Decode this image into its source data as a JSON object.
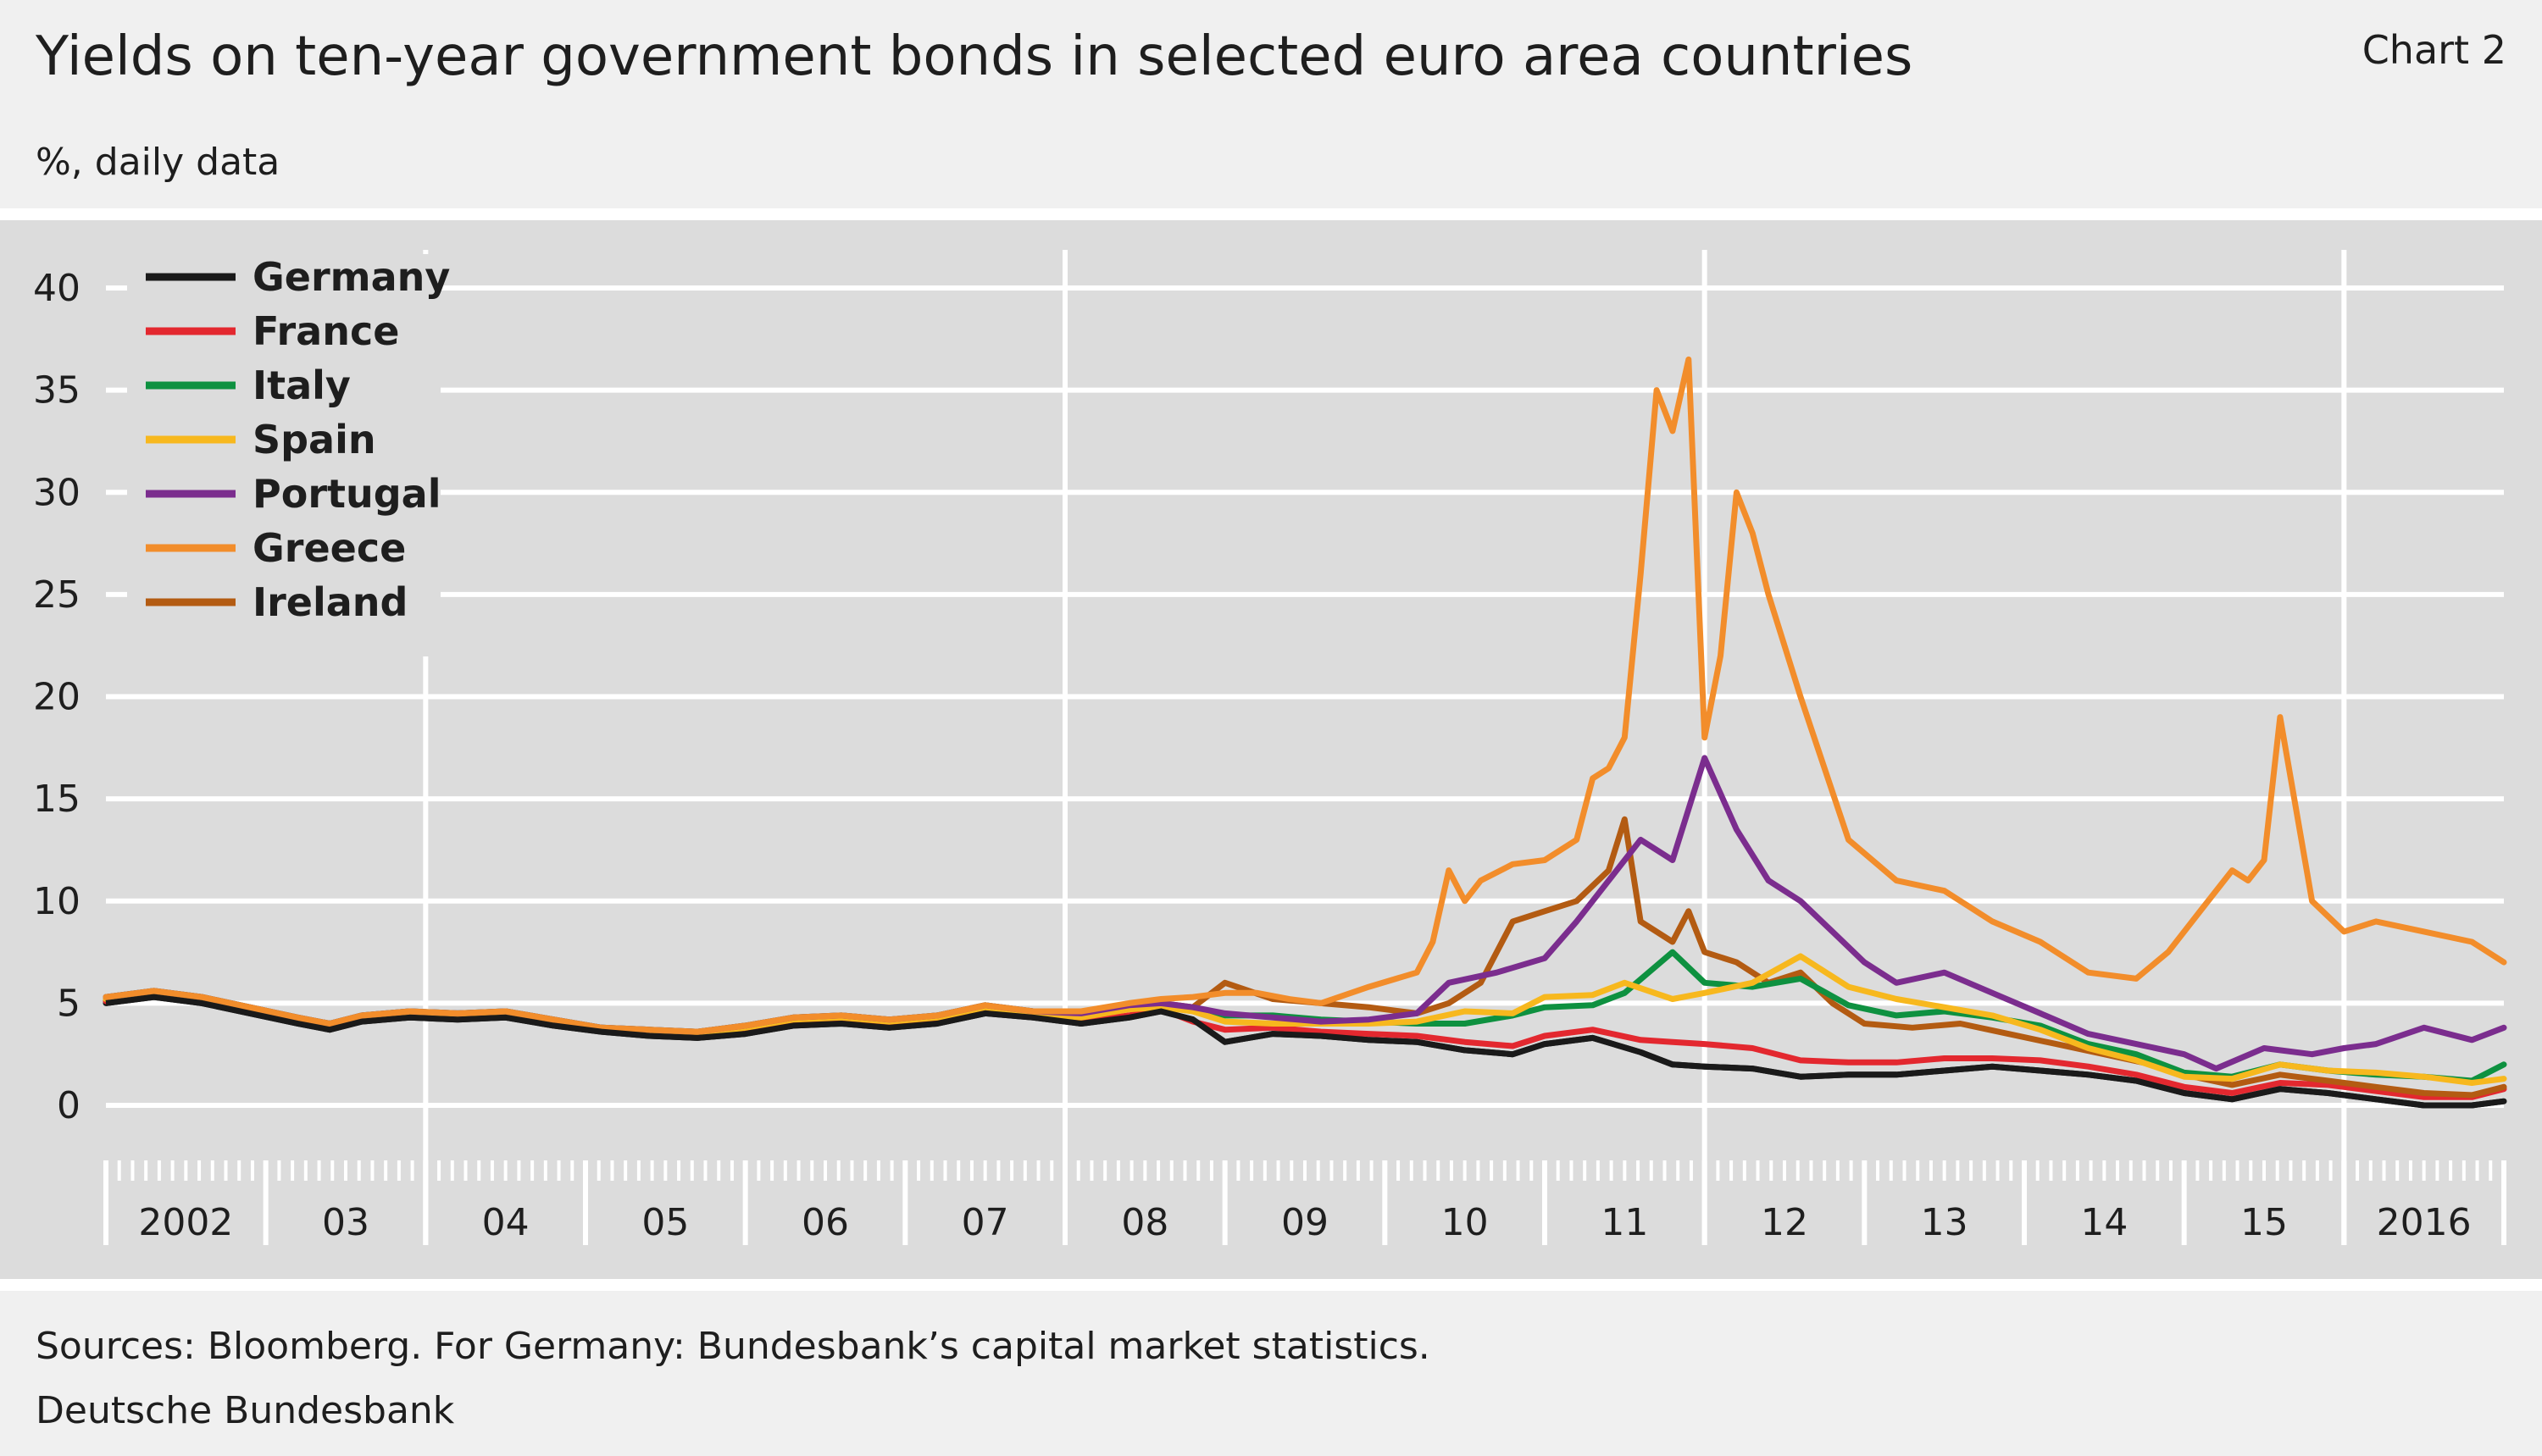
{
  "header": {
    "title": "Yields on ten-year government bonds in selected euro area countries",
    "chart_number": "Chart 2",
    "subtitle": "%, daily data"
  },
  "footer": {
    "sources": "Sources: Bloomberg. For Germany: Bundesbank’s capital market statistics.",
    "publisher": "Deutsche Bundesbank"
  },
  "chart_data": {
    "type": "line",
    "title": "Yields on ten-year government bonds in selected euro area countries",
    "ylabel": "%, daily data",
    "xlabel": "",
    "ylim": [
      -5,
      41
    ],
    "xlim": [
      2002.0,
      2017.0
    ],
    "yticks": [
      0,
      5,
      10,
      15,
      20,
      25,
      30,
      35,
      40
    ],
    "x_tick_labels": [
      {
        "label": "2002",
        "year": 2002
      },
      {
        "label": "03",
        "year": 2003
      },
      {
        "label": "04",
        "year": 2004
      },
      {
        "label": "05",
        "year": 2005
      },
      {
        "label": "06",
        "year": 2006
      },
      {
        "label": "07",
        "year": 2007
      },
      {
        "label": "08",
        "year": 2008
      },
      {
        "label": "09",
        "year": 2009
      },
      {
        "label": "10",
        "year": 2010
      },
      {
        "label": "11",
        "year": 2011
      },
      {
        "label": "12",
        "year": 2012
      },
      {
        "label": "13",
        "year": 2013
      },
      {
        "label": "14",
        "year": 2014
      },
      {
        "label": "15",
        "year": 2015
      },
      {
        "label": "2016",
        "year": 2016
      }
    ],
    "major_vertical_gridlines": [
      2004,
      2008,
      2012,
      2016
    ],
    "grid": true,
    "legend_position": "top-left",
    "series": [
      {
        "name": "Germany",
        "color": "#1a1a1a",
        "x": [
          2002.0,
          2002.3,
          2002.6,
          2002.9,
          2003.2,
          2003.4,
          2003.6,
          2003.9,
          2004.2,
          2004.5,
          2004.8,
          2005.1,
          2005.4,
          2005.7,
          2006.0,
          2006.3,
          2006.6,
          2006.9,
          2007.2,
          2007.5,
          2007.8,
          2008.1,
          2008.4,
          2008.6,
          2008.8,
          2009.0,
          2009.3,
          2009.6,
          2009.9,
          2010.2,
          2010.5,
          2010.8,
          2011.0,
          2011.3,
          2011.6,
          2011.8,
          2012.0,
          2012.3,
          2012.6,
          2012.9,
          2013.2,
          2013.5,
          2013.8,
          2014.1,
          2014.4,
          2014.7,
          2015.0,
          2015.3,
          2015.6,
          2015.9,
          2016.2,
          2016.5,
          2016.8,
          2017.0
        ],
        "y": [
          5.0,
          5.3,
          5.0,
          4.5,
          4.0,
          3.7,
          4.1,
          4.3,
          4.2,
          4.3,
          3.9,
          3.6,
          3.4,
          3.3,
          3.5,
          3.9,
          4.0,
          3.8,
          4.0,
          4.5,
          4.3,
          4.0,
          4.3,
          4.6,
          4.2,
          3.1,
          3.5,
          3.4,
          3.2,
          3.1,
          2.7,
          2.5,
          3.0,
          3.3,
          2.6,
          2.0,
          1.9,
          1.8,
          1.4,
          1.5,
          1.5,
          1.7,
          1.9,
          1.7,
          1.5,
          1.2,
          0.6,
          0.3,
          0.8,
          0.6,
          0.3,
          0.0,
          0.0,
          0.2
        ]
      },
      {
        "name": "France",
        "color": "#e3282f",
        "x": [
          2002.0,
          2002.3,
          2002.6,
          2002.9,
          2003.2,
          2003.4,
          2003.6,
          2003.9,
          2004.2,
          2004.5,
          2004.8,
          2005.1,
          2005.4,
          2005.7,
          2006.0,
          2006.3,
          2006.6,
          2006.9,
          2007.2,
          2007.5,
          2007.8,
          2008.1,
          2008.4,
          2008.6,
          2008.8,
          2009.0,
          2009.3,
          2009.6,
          2009.9,
          2010.2,
          2010.5,
          2010.8,
          2011.0,
          2011.3,
          2011.6,
          2011.8,
          2012.0,
          2012.3,
          2012.6,
          2012.9,
          2013.2,
          2013.5,
          2013.8,
          2014.1,
          2014.4,
          2014.7,
          2015.0,
          2015.3,
          2015.6,
          2015.9,
          2016.2,
          2016.5,
          2016.8,
          2017.0
        ],
        "y": [
          5.1,
          5.4,
          5.1,
          4.6,
          4.1,
          3.8,
          4.2,
          4.4,
          4.3,
          4.4,
          4.0,
          3.7,
          3.5,
          3.4,
          3.6,
          4.0,
          4.1,
          3.9,
          4.1,
          4.6,
          4.4,
          4.1,
          4.4,
          4.7,
          4.1,
          3.7,
          3.8,
          3.6,
          3.5,
          3.4,
          3.1,
          2.9,
          3.4,
          3.7,
          3.2,
          3.1,
          3.0,
          2.8,
          2.2,
          2.1,
          2.1,
          2.3,
          2.3,
          2.2,
          1.9,
          1.5,
          0.9,
          0.6,
          1.1,
          1.0,
          0.7,
          0.4,
          0.4,
          0.8
        ]
      },
      {
        "name": "Italy",
        "color": "#0e9140",
        "x": [
          2002.0,
          2002.3,
          2002.6,
          2002.9,
          2003.2,
          2003.4,
          2003.6,
          2003.9,
          2004.2,
          2004.5,
          2004.8,
          2005.1,
          2005.4,
          2005.7,
          2006.0,
          2006.3,
          2006.6,
          2006.9,
          2007.2,
          2007.5,
          2007.8,
          2008.1,
          2008.4,
          2008.6,
          2008.8,
          2009.0,
          2009.3,
          2009.6,
          2009.9,
          2010.2,
          2010.5,
          2010.8,
          2011.0,
          2011.3,
          2011.5,
          2011.8,
          2012.0,
          2012.3,
          2012.6,
          2012.9,
          2013.2,
          2013.5,
          2013.8,
          2014.1,
          2014.4,
          2014.7,
          2015.0,
          2015.3,
          2015.6,
          2015.9,
          2016.2,
          2016.5,
          2016.8,
          2017.0
        ],
        "y": [
          5.3,
          5.6,
          5.3,
          4.8,
          4.3,
          4.0,
          4.4,
          4.6,
          4.5,
          4.6,
          4.2,
          3.8,
          3.7,
          3.6,
          3.9,
          4.3,
          4.4,
          4.2,
          4.4,
          4.9,
          4.6,
          4.5,
          4.9,
          5.0,
          4.7,
          4.4,
          4.4,
          4.2,
          4.1,
          4.0,
          4.0,
          4.4,
          4.8,
          4.9,
          5.5,
          7.5,
          6.0,
          5.8,
          6.2,
          4.9,
          4.4,
          4.6,
          4.3,
          3.9,
          3.0,
          2.5,
          1.6,
          1.4,
          2.0,
          1.7,
          1.5,
          1.4,
          1.2,
          2.0
        ]
      },
      {
        "name": "Spain",
        "color": "#f7b81e",
        "x": [
          2002.0,
          2002.3,
          2002.6,
          2002.9,
          2003.2,
          2003.4,
          2003.6,
          2003.9,
          2004.2,
          2004.5,
          2004.8,
          2005.1,
          2005.4,
          2005.7,
          2006.0,
          2006.3,
          2006.6,
          2006.9,
          2007.2,
          2007.5,
          2007.8,
          2008.1,
          2008.4,
          2008.6,
          2008.8,
          2009.0,
          2009.3,
          2009.6,
          2009.9,
          2010.2,
          2010.5,
          2010.8,
          2011.0,
          2011.3,
          2011.5,
          2011.8,
          2012.0,
          2012.3,
          2012.6,
          2012.9,
          2013.2,
          2013.5,
          2013.8,
          2014.1,
          2014.4,
          2014.7,
          2015.0,
          2015.3,
          2015.6,
          2015.9,
          2016.2,
          2016.5,
          2016.8,
          2017.0
        ],
        "y": [
          5.2,
          5.5,
          5.2,
          4.7,
          4.2,
          3.9,
          4.3,
          4.5,
          4.4,
          4.5,
          4.1,
          3.7,
          3.6,
          3.5,
          3.8,
          4.2,
          4.3,
          4.1,
          4.3,
          4.8,
          4.5,
          4.3,
          4.7,
          4.8,
          4.6,
          4.1,
          4.0,
          4.0,
          4.0,
          4.1,
          4.6,
          4.5,
          5.3,
          5.4,
          6.0,
          5.2,
          5.5,
          6.0,
          7.3,
          5.8,
          5.2,
          4.8,
          4.4,
          3.7,
          2.8,
          2.2,
          1.4,
          1.3,
          2.0,
          1.7,
          1.6,
          1.4,
          1.1,
          1.3
        ]
      },
      {
        "name": "Portugal",
        "color": "#7b2d8e",
        "x": [
          2002.0,
          2002.3,
          2002.6,
          2002.9,
          2003.2,
          2003.4,
          2003.6,
          2003.9,
          2004.2,
          2004.5,
          2004.8,
          2005.1,
          2005.4,
          2005.7,
          2006.0,
          2006.3,
          2006.6,
          2006.9,
          2007.2,
          2007.5,
          2007.8,
          2008.1,
          2008.4,
          2008.6,
          2008.8,
          2009.0,
          2009.3,
          2009.6,
          2009.9,
          2010.2,
          2010.4,
          2010.7,
          2011.0,
          2011.2,
          2011.4,
          2011.6,
          2011.8,
          2012.0,
          2012.2,
          2012.4,
          2012.6,
          2012.8,
          2013.0,
          2013.2,
          2013.5,
          2013.8,
          2014.1,
          2014.4,
          2014.7,
          2015.0,
          2015.2,
          2015.5,
          2015.8,
          2016.0,
          2016.2,
          2016.5,
          2016.8,
          2017.0
        ],
        "y": [
          5.3,
          5.6,
          5.3,
          4.8,
          4.3,
          4.0,
          4.4,
          4.6,
          4.5,
          4.6,
          4.2,
          3.8,
          3.7,
          3.6,
          3.9,
          4.3,
          4.4,
          4.2,
          4.4,
          4.9,
          4.6,
          4.5,
          4.9,
          5.0,
          4.8,
          4.5,
          4.3,
          4.1,
          4.2,
          4.5,
          6.0,
          6.5,
          7.2,
          9.0,
          11.0,
          13.0,
          12.0,
          17.0,
          13.5,
          11.0,
          10.0,
          8.5,
          7.0,
          6.0,
          6.5,
          5.5,
          4.5,
          3.5,
          3.0,
          2.5,
          1.8,
          2.8,
          2.5,
          2.8,
          3.0,
          3.8,
          3.2,
          3.8
        ]
      },
      {
        "name": "Greece",
        "color": "#f28d2b",
        "x": [
          2002.0,
          2002.3,
          2002.6,
          2002.9,
          2003.2,
          2003.4,
          2003.6,
          2003.9,
          2004.2,
          2004.5,
          2004.8,
          2005.1,
          2005.4,
          2005.7,
          2006.0,
          2006.3,
          2006.6,
          2006.9,
          2007.2,
          2007.5,
          2007.8,
          2008.1,
          2008.4,
          2008.6,
          2008.8,
          2009.0,
          2009.2,
          2009.4,
          2009.6,
          2009.9,
          2010.2,
          2010.3,
          2010.4,
          2010.5,
          2010.6,
          2010.8,
          2011.0,
          2011.2,
          2011.3,
          2011.4,
          2011.5,
          2011.6,
          2011.7,
          2011.8,
          2011.9,
          2012.0,
          2012.1,
          2012.2,
          2012.3,
          2012.4,
          2012.6,
          2012.9,
          2013.2,
          2013.5,
          2013.8,
          2014.1,
          2014.4,
          2014.7,
          2014.9,
          2015.1,
          2015.3,
          2015.4,
          2015.5,
          2015.6,
          2015.8,
          2016.0,
          2016.2,
          2016.5,
          2016.8,
          2017.0
        ],
        "y": [
          5.3,
          5.6,
          5.3,
          4.8,
          4.3,
          4.0,
          4.4,
          4.6,
          4.5,
          4.6,
          4.2,
          3.8,
          3.7,
          3.6,
          3.9,
          4.3,
          4.4,
          4.2,
          4.4,
          4.9,
          4.6,
          4.6,
          5.0,
          5.2,
          5.3,
          5.5,
          5.5,
          5.2,
          5.0,
          5.8,
          6.5,
          8.0,
          11.5,
          10.0,
          11.0,
          11.8,
          12.0,
          13.0,
          16.0,
          16.5,
          18.0,
          26.0,
          35.0,
          33.0,
          36.5,
          18.0,
          22.0,
          30.0,
          28.0,
          25.0,
          20.0,
          13.0,
          11.0,
          10.5,
          9.0,
          8.0,
          6.5,
          6.2,
          7.5,
          9.5,
          11.5,
          11.0,
          12.0,
          19.0,
          10.0,
          8.5,
          9.0,
          8.5,
          8.0,
          7.0
        ]
      },
      {
        "name": "Ireland",
        "color": "#b35b12",
        "x": [
          2002.0,
          2002.3,
          2002.6,
          2002.9,
          2003.2,
          2003.4,
          2003.6,
          2003.9,
          2004.2,
          2004.5,
          2004.8,
          2005.1,
          2005.4,
          2005.7,
          2006.0,
          2006.3,
          2006.6,
          2006.9,
          2007.2,
          2007.5,
          2007.8,
          2008.1,
          2008.4,
          2008.6,
          2008.8,
          2009.0,
          2009.3,
          2009.6,
          2009.9,
          2010.2,
          2010.4,
          2010.6,
          2010.8,
          2011.0,
          2011.2,
          2011.4,
          2011.5,
          2011.6,
          2011.8,
          2011.9,
          2012.0,
          2012.2,
          2012.4,
          2012.6,
          2012.8,
          2013.0,
          2013.3,
          2013.6,
          2013.9,
          2014.2,
          2014.5,
          2014.8,
          2015.0,
          2015.3,
          2015.6,
          2015.9,
          2016.2,
          2016.5,
          2016.8,
          2017.0
        ],
        "y": [
          5.2,
          5.5,
          5.2,
          4.7,
          4.2,
          3.9,
          4.3,
          4.5,
          4.4,
          4.5,
          4.1,
          3.7,
          3.6,
          3.5,
          3.8,
          4.2,
          4.3,
          4.1,
          4.3,
          4.8,
          4.5,
          4.4,
          4.8,
          5.0,
          4.8,
          6.0,
          5.2,
          5.0,
          4.8,
          4.5,
          5.0,
          6.0,
          9.0,
          9.5,
          10.0,
          11.5,
          14.0,
          9.0,
          8.0,
          9.5,
          7.5,
          7.0,
          6.0,
          6.5,
          5.0,
          4.0,
          3.8,
          4.0,
          3.5,
          3.0,
          2.5,
          2.0,
          1.5,
          1.0,
          1.5,
          1.2,
          0.9,
          0.6,
          0.5,
          0.9
        ]
      }
    ]
  }
}
